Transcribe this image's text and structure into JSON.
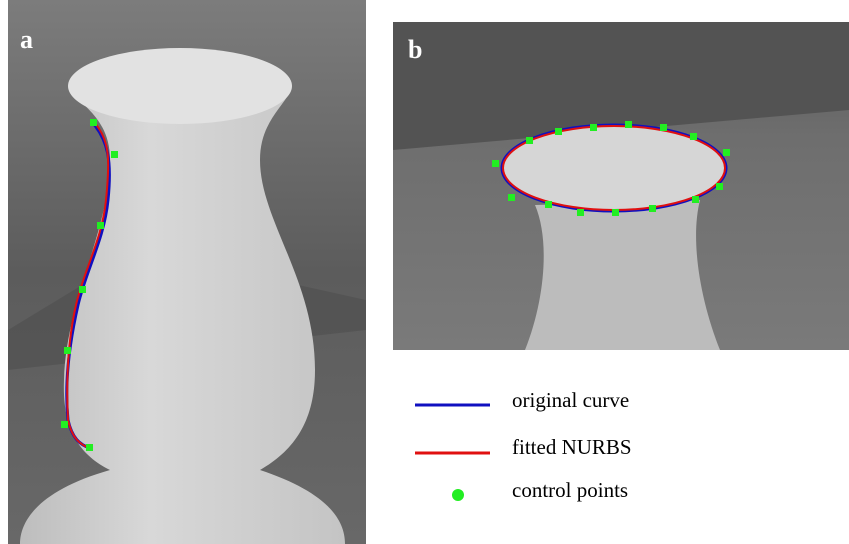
{
  "panels": [
    {
      "label": "a"
    },
    {
      "label": "b"
    }
  ],
  "legend": [
    {
      "label": "original curve"
    },
    {
      "label": "fitted NURBS"
    },
    {
      "label": "control points"
    }
  ]
}
